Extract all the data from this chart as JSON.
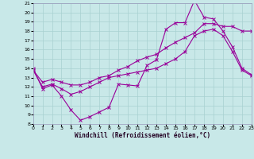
{
  "xlabel": "Windchill (Refroidissement éolien,°C)",
  "xlim": [
    0,
    23
  ],
  "ylim": [
    8,
    21
  ],
  "xticks": [
    0,
    1,
    2,
    3,
    4,
    5,
    6,
    7,
    8,
    9,
    10,
    11,
    12,
    13,
    14,
    15,
    16,
    17,
    18,
    19,
    20,
    21,
    22,
    23
  ],
  "yticks": [
    8,
    9,
    10,
    11,
    12,
    13,
    14,
    15,
    16,
    17,
    18,
    19,
    20,
    21
  ],
  "bg_color": "#c8e8e8",
  "grid_color": "#a8d0d0",
  "line_color": "#990099",
  "s1y": [
    14.0,
    11.8,
    12.2,
    11.0,
    9.5,
    8.4,
    8.8,
    9.3,
    9.8,
    12.3,
    12.2,
    12.1,
    14.3,
    14.9,
    18.2,
    18.9,
    18.9,
    21.3,
    19.5,
    19.3,
    18.0,
    16.3,
    14.0,
    13.3
  ],
  "s2y": [
    13.8,
    12.5,
    12.8,
    12.5,
    12.2,
    12.2,
    12.5,
    13.0,
    13.2,
    13.8,
    14.2,
    14.8,
    15.2,
    15.5,
    16.2,
    16.8,
    17.3,
    17.8,
    18.8,
    18.8,
    18.5,
    18.5,
    18.0,
    18.0
  ],
  "s3y": [
    13.8,
    12.0,
    12.3,
    11.8,
    11.2,
    11.5,
    12.0,
    12.5,
    13.0,
    13.2,
    13.4,
    13.6,
    13.8,
    14.0,
    14.5,
    15.0,
    15.8,
    17.5,
    18.0,
    18.2,
    17.5,
    15.8,
    13.8,
    13.2
  ]
}
